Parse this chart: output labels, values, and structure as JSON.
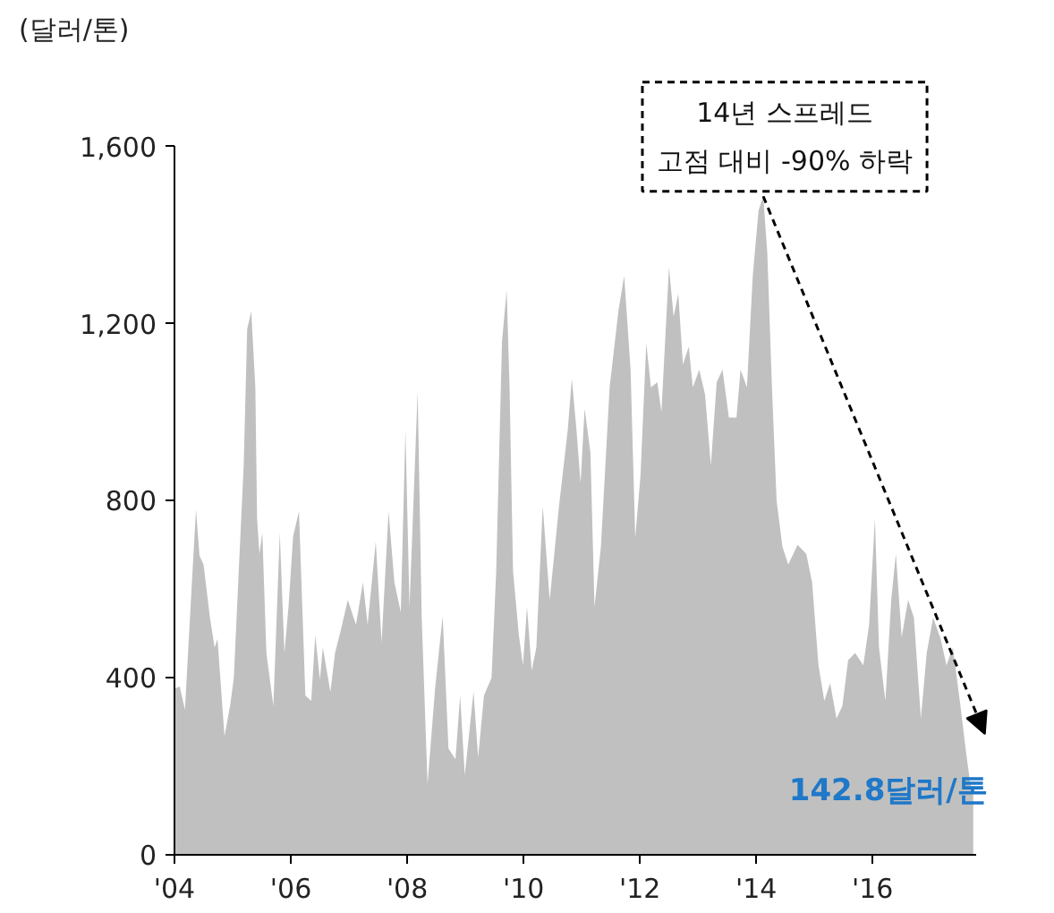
{
  "chart_data": {
    "type": "area",
    "ylabel": "(달러/톤)",
    "x": [
      2004.01,
      2004.09,
      2004.18,
      2004.3,
      2004.37,
      2004.43,
      2004.5,
      2004.61,
      2004.69,
      2004.74,
      2004.86,
      2004.96,
      2005.02,
      2005.1,
      2005.19,
      2005.25,
      2005.32,
      2005.39,
      2005.42,
      2005.46,
      2005.51,
      2005.58,
      2005.7,
      2005.81,
      2005.89,
      2005.96,
      2006.04,
      2006.14,
      2006.25,
      2006.35,
      2006.42,
      2006.5,
      2006.55,
      2006.68,
      2006.76,
      2006.86,
      2006.98,
      2007.12,
      2007.24,
      2007.32,
      2007.46,
      2007.56,
      2007.68,
      2007.78,
      2007.89,
      2007.97,
      2008.04,
      2008.18,
      2008.25,
      2008.35,
      2008.48,
      2008.61,
      2008.71,
      2008.83,
      2008.91,
      2008.99,
      2009.14,
      2009.22,
      2009.32,
      2009.45,
      2009.53,
      2009.63,
      2009.71,
      2009.76,
      2009.82,
      2009.92,
      2009.99,
      2010.06,
      2010.14,
      2010.22,
      2010.33,
      2010.45,
      2010.61,
      2010.76,
      2010.83,
      2010.91,
      2010.98,
      2011.05,
      2011.15,
      2011.22,
      2011.33,
      2011.48,
      2011.63,
      2011.73,
      2011.84,
      2011.92,
      2012.01,
      2012.11,
      2012.19,
      2012.3,
      2012.37,
      2012.5,
      2012.58,
      2012.66,
      2012.74,
      2012.84,
      2012.91,
      2013.02,
      2013.12,
      2013.22,
      2013.32,
      2013.42,
      2013.53,
      2013.66,
      2013.73,
      2013.84,
      2013.94,
      2014.04,
      2014.12,
      2014.19,
      2014.27,
      2014.35,
      2014.45,
      2014.55,
      2014.71,
      2014.86,
      2014.96,
      2015.07,
      2015.17,
      2015.27,
      2015.38,
      2015.48,
      2015.58,
      2015.7,
      2015.84,
      2015.94,
      2016.04,
      2016.11,
      2016.22,
      2016.32,
      2016.4,
      2016.5,
      2016.61,
      2016.71,
      2016.83,
      2016.93,
      2017.04,
      2017.17,
      2017.27,
      2017.38,
      2017.51,
      2017.61,
      2017.68,
      2017.73
    ],
    "series": [
      {
        "color": "#c0c0c0",
        "values": [
          376,
          380,
          328,
          616,
          780,
          676,
          656,
          536,
          468,
          488,
          268,
          340,
          400,
          628,
          880,
          1188,
          1228,
          1056,
          760,
          680,
          728,
          456,
          336,
          728,
          456,
          560,
          720,
          776,
          360,
          348,
          496,
          396,
          468,
          368,
          456,
          508,
          576,
          520,
          616,
          520,
          708,
          480,
          776,
          616,
          548,
          960,
          560,
          1048,
          536,
          160,
          376,
          540,
          240,
          216,
          360,
          180,
          368,
          220,
          360,
          400,
          640,
          1160,
          1276,
          1056,
          640,
          496,
          428,
          560,
          416,
          468,
          788,
          576,
          788,
          960,
          1076,
          960,
          840,
          1008,
          908,
          560,
          696,
          1056,
          1228,
          1308,
          1096,
          716,
          856,
          1156,
          1056,
          1068,
          1000,
          1328,
          1216,
          1268,
          1108,
          1148,
          1056,
          1096,
          1040,
          880,
          1068,
          1096,
          988,
          988,
          1096,
          1056,
          1308,
          1456,
          1488,
          1360,
          1056,
          800,
          696,
          656,
          700,
          680,
          616,
          428,
          348,
          388,
          308,
          336,
          440,
          456,
          428,
          520,
          760,
          468,
          348,
          576,
          680,
          492,
          576,
          536,
          308,
          456,
          536,
          488,
          428,
          468,
          336,
          228,
          160,
          142.8
        ]
      }
    ],
    "xlim": [
      2004,
      2017.78
    ],
    "xticks": [
      {
        "value": 2004,
        "label": "'04"
      },
      {
        "value": 2006,
        "label": "'06"
      },
      {
        "value": 2008,
        "label": "'08"
      },
      {
        "value": 2010,
        "label": "'10"
      },
      {
        "value": 2012,
        "label": "'12"
      },
      {
        "value": 2014,
        "label": "'14"
      },
      {
        "value": 2016,
        "label": "'16"
      }
    ],
    "ylim": [
      0,
      1600
    ],
    "yticks": [
      0,
      400,
      800,
      {
        "value": 1200,
        "label": "1,200"
      },
      {
        "value": 1600,
        "label": "1,600"
      }
    ],
    "grid": false,
    "annotations": [
      {
        "text": "14년 스프레드\n고점 대비 -90% 하락",
        "x": 2014.12,
        "y": 1488
      },
      {
        "text": "142.8달러/톤",
        "x": 2017.73,
        "y": 142.8
      }
    ]
  }
}
